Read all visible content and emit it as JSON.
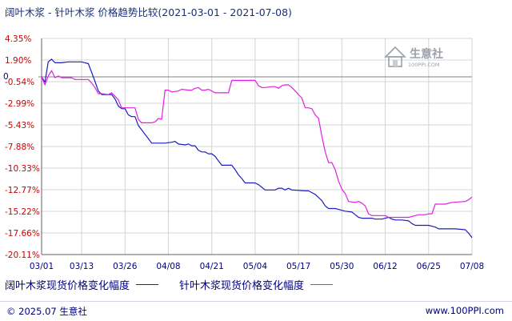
{
  "title": "阔叶木浆 - 针叶木浆  价格趋势比较(2021-03-01 - 2021-07-08)",
  "watermark": {
    "name": "生意社",
    "domain": "100PPI.COM"
  },
  "footer": {
    "copyright": "© 2025.07 生意社",
    "site": "www.100PPI.com"
  },
  "colors": {
    "series1": "#1c1cbf",
    "series2": "#e020e0",
    "ytick": "#cc0000",
    "grid": "#d4d4d4"
  },
  "chart_data": {
    "type": "line",
    "title": "阔叶木浆 - 针叶木浆  价格趋势比较(2021-03-01 - 2021-07-08)",
    "ylim": [
      -20.11,
      4.35
    ],
    "yticks": [
      "4.35%",
      "1.90%",
      "-0.54%",
      "-2.99%",
      "-5.43%",
      "-7.88%",
      "-10.33%",
      "-12.77%",
      "-15.22%",
      "-17.66%",
      "-20.11%"
    ],
    "yvalues": [
      4.35,
      1.9,
      -0.54,
      -2.99,
      -5.43,
      -7.88,
      -10.33,
      -12.77,
      -15.22,
      -17.66,
      -20.11
    ],
    "zero_label": "0",
    "xlim": [
      0,
      129
    ],
    "xticks": [
      "03/01",
      "03/13",
      "03/26",
      "04/08",
      "04/21",
      "05/04",
      "05/17",
      "05/30",
      "06/12",
      "06/25",
      "07/08"
    ],
    "xvalues": [
      0,
      12,
      25,
      38,
      51,
      64,
      77,
      90,
      103,
      116,
      129
    ],
    "grid": true,
    "legend_position": "bottom",
    "series": [
      {
        "name": "阔叶木浆现货价格变化幅度",
        "points": [
          [
            0,
            0
          ],
          [
            1,
            -0.6
          ],
          [
            2,
            1.7
          ],
          [
            3,
            2.0
          ],
          [
            4,
            1.6
          ],
          [
            6,
            1.6
          ],
          [
            8,
            1.7
          ],
          [
            12,
            1.7
          ],
          [
            13,
            1.6
          ],
          [
            14,
            1.5
          ],
          [
            15,
            0.5
          ],
          [
            16,
            -0.5
          ],
          [
            17,
            -1.6
          ],
          [
            18,
            -2.0
          ],
          [
            19,
            -2.0
          ],
          [
            20,
            -2.0
          ],
          [
            21,
            -2.0
          ],
          [
            22,
            -2.5
          ],
          [
            23,
            -3.3
          ],
          [
            24,
            -3.6
          ],
          [
            25,
            -3.6
          ],
          [
            26,
            -4.3
          ],
          [
            27,
            -4.5
          ],
          [
            28,
            -4.5
          ],
          [
            29,
            -5.5
          ],
          [
            30,
            -6.0
          ],
          [
            31,
            -6.5
          ],
          [
            32,
            -7.0
          ],
          [
            33,
            -7.5
          ],
          [
            34,
            -7.5
          ],
          [
            37,
            -7.5
          ],
          [
            39,
            -7.4
          ],
          [
            40,
            -7.3
          ],
          [
            41,
            -7.6
          ],
          [
            43,
            -7.7
          ],
          [
            44,
            -7.6
          ],
          [
            45,
            -7.8
          ],
          [
            46,
            -7.8
          ],
          [
            47,
            -8.3
          ],
          [
            48,
            -8.5
          ],
          [
            49,
            -8.5
          ],
          [
            50,
            -8.7
          ],
          [
            51,
            -8.7
          ],
          [
            52,
            -9.0
          ],
          [
            53,
            -9.5
          ],
          [
            54,
            -10.0
          ],
          [
            57,
            -10.0
          ],
          [
            58,
            -10.5
          ],
          [
            59,
            -11.1
          ],
          [
            60,
            -11.5
          ],
          [
            61,
            -12.0
          ],
          [
            63,
            -12.0
          ],
          [
            64,
            -12.0
          ],
          [
            65,
            -12.2
          ],
          [
            66,
            -12.5
          ],
          [
            67,
            -12.8
          ],
          [
            70,
            -12.8
          ],
          [
            71,
            -12.6
          ],
          [
            72,
            -12.6
          ],
          [
            73,
            -12.8
          ],
          [
            74,
            -12.6
          ],
          [
            75,
            -12.8
          ],
          [
            79,
            -12.9
          ],
          [
            80,
            -12.9
          ],
          [
            81,
            -13.1
          ],
          [
            82,
            -13.3
          ],
          [
            84,
            -14.0
          ],
          [
            85,
            -14.6
          ],
          [
            86,
            -14.9
          ],
          [
            88,
            -14.9
          ],
          [
            89,
            -15.0
          ],
          [
            90,
            -15.1
          ],
          [
            91,
            -15.2
          ],
          [
            93,
            -15.3
          ],
          [
            94,
            -15.6
          ],
          [
            95,
            -15.9
          ],
          [
            96,
            -16.0
          ],
          [
            99,
            -16.0
          ],
          [
            100,
            -16.1
          ],
          [
            102,
            -16.1
          ],
          [
            103,
            -16.0
          ],
          [
            104,
            -15.9
          ],
          [
            105,
            -16.1
          ],
          [
            106,
            -16.2
          ],
          [
            107,
            -16.2
          ],
          [
            108,
            -16.2
          ],
          [
            110,
            -16.3
          ],
          [
            111,
            -16.6
          ],
          [
            112,
            -16.8
          ],
          [
            115,
            -16.8
          ],
          [
            116,
            -16.8
          ],
          [
            117,
            -16.9
          ],
          [
            118,
            -17.0
          ],
          [
            119,
            -17.2
          ],
          [
            124,
            -17.2
          ],
          [
            127,
            -17.3
          ],
          [
            128,
            -17.7
          ],
          [
            129,
            -18.2
          ]
        ]
      },
      {
        "name": "针叶木浆现货价格变化幅度",
        "points": [
          [
            0,
            0
          ],
          [
            1,
            -0.9
          ],
          [
            2,
            0.1
          ],
          [
            3,
            0.7
          ],
          [
            4,
            -0.1
          ],
          [
            5,
            0.1
          ],
          [
            6,
            -0.1
          ],
          [
            9,
            -0.1
          ],
          [
            10,
            -0.3
          ],
          [
            14,
            -0.3
          ],
          [
            15,
            -0.7
          ],
          [
            16,
            -1.2
          ],
          [
            17,
            -1.9
          ],
          [
            18,
            -1.9
          ],
          [
            20,
            -2.0
          ],
          [
            21,
            -1.8
          ],
          [
            22,
            -2.2
          ],
          [
            23,
            -2.6
          ],
          [
            24,
            -3.5
          ],
          [
            25,
            -3.5
          ],
          [
            28,
            -3.5
          ],
          [
            29,
            -4.8
          ],
          [
            30,
            -5.2
          ],
          [
            33,
            -5.2
          ],
          [
            34,
            -5.1
          ],
          [
            35,
            -4.7
          ],
          [
            36,
            -4.8
          ],
          [
            37,
            -1.5
          ],
          [
            38,
            -1.5
          ],
          [
            39,
            -1.7
          ],
          [
            41,
            -1.6
          ],
          [
            42,
            -1.4
          ],
          [
            44,
            -1.5
          ],
          [
            45,
            -1.5
          ],
          [
            46,
            -1.3
          ],
          [
            47,
            -1.2
          ],
          [
            48,
            -1.5
          ],
          [
            49,
            -1.5
          ],
          [
            50,
            -1.4
          ],
          [
            51,
            -1.6
          ],
          [
            52,
            -1.8
          ],
          [
            56,
            -1.8
          ],
          [
            57,
            -0.4
          ],
          [
            58,
            -0.4
          ],
          [
            64,
            -0.4
          ],
          [
            65,
            -1.0
          ],
          [
            66,
            -1.2
          ],
          [
            67,
            -1.2
          ],
          [
            69,
            -1.1
          ],
          [
            70,
            -1.1
          ],
          [
            71,
            -1.3
          ],
          [
            72,
            -1.0
          ],
          [
            73,
            -0.9
          ],
          [
            74,
            -0.9
          ],
          [
            75,
            -1.2
          ],
          [
            76,
            -1.6
          ],
          [
            77,
            -2.0
          ],
          [
            78,
            -2.4
          ],
          [
            79,
            -3.5
          ],
          [
            80,
            -3.5
          ],
          [
            81,
            -3.6
          ],
          [
            82,
            -4.3
          ],
          [
            83,
            -4.7
          ],
          [
            84,
            -6.7
          ],
          [
            85,
            -8.5
          ],
          [
            86,
            -9.7
          ],
          [
            87,
            -9.7
          ],
          [
            88,
            -10.5
          ],
          [
            89,
            -11.8
          ],
          [
            90,
            -12.7
          ],
          [
            91,
            -13.2
          ],
          [
            92,
            -14.1
          ],
          [
            94,
            -14.2
          ],
          [
            95,
            -14.1
          ],
          [
            96,
            -14.3
          ],
          [
            97,
            -14.6
          ],
          [
            98,
            -15.5
          ],
          [
            99,
            -15.7
          ],
          [
            103,
            -15.7
          ],
          [
            104,
            -15.9
          ],
          [
            107,
            -15.9
          ],
          [
            110,
            -15.9
          ],
          [
            113,
            -15.6
          ],
          [
            115,
            -15.6
          ],
          [
            116,
            -15.5
          ],
          [
            117,
            -15.5
          ],
          [
            118,
            -14.4
          ],
          [
            121,
            -14.4
          ],
          [
            123,
            -14.2
          ],
          [
            127,
            -14.1
          ],
          [
            128,
            -13.9
          ],
          [
            129,
            -13.6
          ]
        ]
      }
    ]
  }
}
